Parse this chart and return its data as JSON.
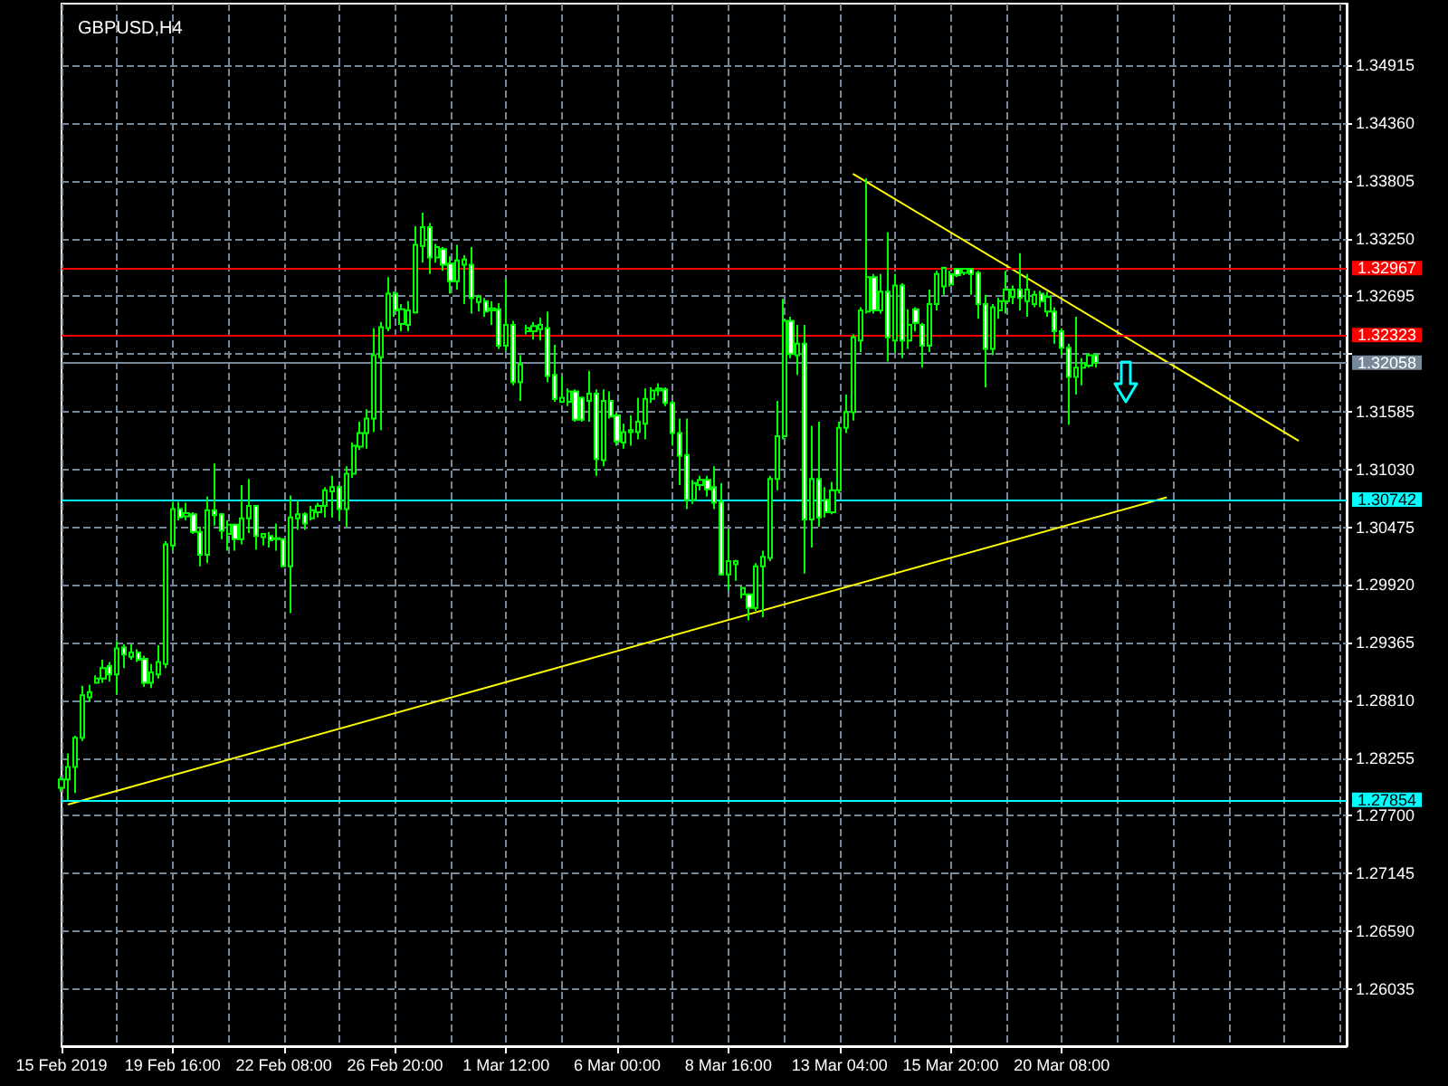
{
  "chart_data": {
    "type": "candlestick",
    "title": "GBPUSD,H4",
    "categories": [
      "15 Feb 2019",
      null,
      null,
      null,
      null,
      null,
      null,
      null,
      null,
      null,
      null,
      null,
      null,
      null,
      null,
      null,
      "19 Feb 16:00",
      null,
      null,
      null,
      null,
      null,
      null,
      null,
      null,
      null,
      null,
      null,
      null,
      null,
      null,
      null,
      "22 Feb 08:00",
      null,
      null,
      null,
      null,
      null,
      null,
      null,
      null,
      null,
      null,
      null,
      null,
      null,
      null,
      null,
      "26 Feb 20:00",
      null,
      null,
      null,
      null,
      null,
      null,
      null,
      null,
      null,
      null,
      null,
      null,
      null,
      null,
      null,
      "1 Mar 12:00",
      null,
      null,
      null,
      null,
      null,
      null,
      null,
      null,
      null,
      null,
      null,
      null,
      null,
      null,
      null,
      "6 Mar 00:00",
      null,
      null,
      null,
      null,
      null,
      null,
      null,
      null,
      null,
      null,
      null,
      null,
      null,
      null,
      null,
      "8 Mar 16:00",
      null,
      null,
      null,
      null,
      null,
      null,
      null,
      null,
      null,
      null,
      null,
      null,
      null,
      null,
      null,
      "13 Mar 04:00",
      null,
      null,
      null,
      null,
      null,
      null,
      null,
      null,
      null,
      null,
      null,
      null,
      null,
      null,
      null,
      "15 Mar 20:00",
      null,
      null,
      null,
      null,
      null,
      null,
      null,
      null,
      null,
      null,
      null,
      null,
      null,
      null,
      null,
      "20 Mar 08:00",
      null,
      null,
      null,
      null,
      null,
      null,
      null,
      null,
      null,
      null,
      null,
      null,
      null,
      null,
      null,
      null,
      null,
      null,
      null,
      null,
      null,
      null,
      null,
      null,
      null,
      null,
      null,
      null,
      null,
      null,
      null,
      null,
      null,
      null,
      null,
      null,
      null,
      null,
      null,
      null,
      null
    ],
    "ohlc": [
      [
        1.2797,
        1.2808,
        1.2793,
        1.2805
      ],
      [
        1.2805,
        1.283,
        1.2785,
        1.2817
      ],
      [
        1.2817,
        1.2847,
        1.2792,
        1.2845
      ],
      [
        1.2845,
        1.2895,
        1.2842,
        1.2886
      ],
      [
        1.2884,
        1.2896,
        1.288,
        1.2889
      ],
      [
        1.2898,
        1.2905,
        1.2897,
        1.2902
      ],
      [
        1.2902,
        1.292,
        1.2898,
        1.2912
      ],
      [
        1.2914,
        1.2918,
        1.2899,
        1.2906
      ],
      [
        1.2906,
        1.2938,
        1.2887,
        1.2931
      ],
      [
        1.2932,
        1.2935,
        1.2912,
        1.2925
      ],
      [
        1.2923,
        1.2935,
        1.292,
        1.2927
      ],
      [
        1.2927,
        1.293,
        1.2918,
        1.292
      ],
      [
        1.2921,
        1.2924,
        1.2894,
        1.2898
      ],
      [
        1.2898,
        1.2916,
        1.2893,
        1.2908
      ],
      [
        1.2906,
        1.2934,
        1.2902,
        1.2918
      ],
      [
        1.2916,
        1.3034,
        1.2912,
        1.3031
      ],
      [
        1.303,
        1.3072,
        1.3025,
        1.3065
      ],
      [
        1.3065,
        1.3072,
        1.3054,
        1.3057
      ],
      [
        1.3058,
        1.3071,
        1.3054,
        1.3061
      ],
      [
        1.306,
        1.3062,
        1.3041,
        1.3043
      ],
      [
        1.3043,
        1.3048,
        1.301,
        1.3021
      ],
      [
        1.3021,
        1.3077,
        1.3013,
        1.3064
      ],
      [
        1.3064,
        1.3109,
        1.3049,
        1.3059
      ],
      [
        1.306,
        1.3061,
        1.3036,
        1.3044
      ],
      [
        1.3041,
        1.3054,
        1.3025,
        1.305
      ],
      [
        1.305,
        1.3051,
        1.3025,
        1.3036
      ],
      [
        1.3036,
        1.3088,
        1.3031,
        1.3056
      ],
      [
        1.3056,
        1.3094,
        1.3042,
        1.3068
      ],
      [
        1.3068,
        1.3069,
        1.3026,
        1.3039
      ],
      [
        1.3038,
        1.3042,
        1.303,
        1.3041
      ],
      [
        1.3039,
        1.3043,
        1.3028,
        1.3035
      ],
      [
        1.3037,
        1.3051,
        1.3025,
        1.3036
      ],
      [
        1.3036,
        1.3037,
        1.3009,
        1.301
      ],
      [
        1.301,
        1.3078,
        1.2965,
        1.3057
      ],
      [
        1.3056,
        1.3073,
        1.3045,
        1.306
      ],
      [
        1.306,
        1.3062,
        1.3045,
        1.3051
      ],
      [
        1.3056,
        1.3068,
        1.3054,
        1.3064
      ],
      [
        1.3062,
        1.3071,
        1.3057,
        1.3068
      ],
      [
        1.3068,
        1.3086,
        1.3057,
        1.3083
      ],
      [
        1.3082,
        1.3097,
        1.3057,
        1.3086
      ],
      [
        1.3086,
        1.3088,
        1.3054,
        1.3065
      ],
      [
        1.3065,
        1.3106,
        1.3048,
        1.3099
      ],
      [
        1.3099,
        1.3129,
        1.3095,
        1.3126
      ],
      [
        1.3125,
        1.3149,
        1.3122,
        1.3138
      ],
      [
        1.3138,
        1.3161,
        1.3123,
        1.3152
      ],
      [
        1.3152,
        1.3239,
        1.3139,
        1.3213
      ],
      [
        1.3211,
        1.3245,
        1.3141,
        1.324
      ],
      [
        1.3239,
        1.3288,
        1.3236,
        1.3272
      ],
      [
        1.3272,
        1.3274,
        1.325,
        1.3256
      ],
      [
        1.3243,
        1.3262,
        1.3236,
        1.3257
      ],
      [
        1.3242,
        1.3265,
        1.3236,
        1.3256
      ],
      [
        1.3254,
        1.3337,
        1.3253,
        1.3319
      ],
      [
        1.3318,
        1.335,
        1.3302,
        1.3336
      ],
      [
        1.3336,
        1.334,
        1.3291,
        1.3307
      ],
      [
        1.3307,
        1.332,
        1.3302,
        1.3317
      ],
      [
        1.3315,
        1.3317,
        1.3294,
        1.33
      ],
      [
        1.3301,
        1.3308,
        1.3272,
        1.3284
      ],
      [
        1.3284,
        1.3319,
        1.3276,
        1.3304
      ],
      [
        1.33,
        1.3309,
        1.3262,
        1.3305
      ],
      [
        1.33,
        1.3317,
        1.3253,
        1.3268
      ],
      [
        1.3264,
        1.3271,
        1.3255,
        1.3269
      ],
      [
        1.3265,
        1.3268,
        1.325,
        1.3255
      ],
      [
        1.3256,
        1.3265,
        1.3242,
        1.3258
      ],
      [
        1.3257,
        1.3263,
        1.3219,
        1.3222
      ],
      [
        1.3222,
        1.3286,
        1.3217,
        1.3242
      ],
      [
        1.3242,
        1.3246,
        1.3184,
        1.3187
      ],
      [
        1.3187,
        1.3213,
        1.3169,
        1.3204
      ],
      [
        1.3236,
        1.3242,
        1.3233,
        1.3239
      ],
      [
        1.3236,
        1.3245,
        1.3228,
        1.3241
      ],
      [
        1.3238,
        1.3249,
        1.3227,
        1.3242
      ],
      [
        1.3239,
        1.3255,
        1.3187,
        1.3193
      ],
      [
        1.3194,
        1.3223,
        1.3168,
        1.3171
      ],
      [
        1.3168,
        1.3193,
        1.3167,
        1.3172
      ],
      [
        1.3168,
        1.3181,
        1.3164,
        1.3178
      ],
      [
        1.3178,
        1.318,
        1.3149,
        1.3151
      ],
      [
        1.3172,
        1.3173,
        1.3149,
        1.3151
      ],
      [
        1.3169,
        1.3198,
        1.3149,
        1.3176
      ],
      [
        1.3176,
        1.318,
        1.3097,
        1.3113
      ],
      [
        1.3112,
        1.318,
        1.3106,
        1.3169
      ],
      [
        1.3169,
        1.3178,
        1.3152,
        1.3154
      ],
      [
        1.3155,
        1.3158,
        1.3126,
        1.313
      ],
      [
        1.3129,
        1.3147,
        1.3123,
        1.3139
      ],
      [
        1.3139,
        1.3155,
        1.3126,
        1.3141
      ],
      [
        1.3139,
        1.3172,
        1.3132,
        1.3149
      ],
      [
        1.3147,
        1.3181,
        1.3132,
        1.3171
      ],
      [
        1.3171,
        1.3182,
        1.3167,
        1.3179
      ],
      [
        1.3179,
        1.3186,
        1.3174,
        1.3181
      ],
      [
        1.318,
        1.3182,
        1.3164,
        1.3167
      ],
      [
        1.3167,
        1.3169,
        1.3126,
        1.3138
      ],
      [
        1.3138,
        1.3152,
        1.3088,
        1.3116
      ],
      [
        1.3117,
        1.3152,
        1.3065,
        1.3074
      ],
      [
        1.3074,
        1.3093,
        1.307,
        1.309
      ],
      [
        1.3088,
        1.3097,
        1.3083,
        1.3093
      ],
      [
        1.3093,
        1.3097,
        1.3077,
        1.3084
      ],
      [
        1.3086,
        1.3106,
        1.3065,
        1.3071
      ],
      [
        1.3072,
        1.309,
        1.3001,
        1.3002
      ],
      [
        1.3002,
        1.3045,
        1.2987,
        1.3015
      ],
      [
        1.3012,
        1.3016,
        1.2996,
        1.3015
      ],
      [
        1.2983,
        1.2991,
        1.2979,
        1.2989
      ],
      [
        1.2983,
        1.2984,
        1.2958,
        1.297
      ],
      [
        1.297,
        1.3013,
        1.2967,
        1.301
      ],
      [
        1.301,
        1.3025,
        1.2961,
        1.3019
      ],
      [
        1.3018,
        1.3097,
        1.3015,
        1.3094
      ],
      [
        1.3094,
        1.3169,
        1.3083,
        1.3135
      ],
      [
        1.3135,
        1.3267,
        1.3132,
        1.3246
      ],
      [
        1.3246,
        1.325,
        1.321,
        1.3214
      ],
      [
        1.3213,
        1.3242,
        1.3194,
        1.3224
      ],
      [
        1.3224,
        1.3242,
        1.3003,
        1.3055
      ],
      [
        1.3055,
        1.3145,
        1.3028,
        1.3094
      ],
      [
        1.3094,
        1.3149,
        1.3048,
        1.3057
      ],
      [
        1.3074,
        1.3086,
        1.3057,
        1.3062
      ],
      [
        1.3062,
        1.3091,
        1.306,
        1.3083
      ],
      [
        1.3083,
        1.3149,
        1.308,
        1.3143
      ],
      [
        1.3143,
        1.3175,
        1.3138,
        1.3158
      ],
      [
        1.3158,
        1.3233,
        1.315,
        1.323
      ],
      [
        1.3227,
        1.3259,
        1.3216,
        1.3256
      ],
      [
        1.3255,
        1.3383,
        1.3253,
        1.3288
      ],
      [
        1.3288,
        1.3291,
        1.3253,
        1.3256
      ],
      [
        1.3256,
        1.3291,
        1.3253,
        1.3274
      ],
      [
        1.3274,
        1.3331,
        1.3207,
        1.323
      ],
      [
        1.3227,
        1.3291,
        1.3216,
        1.328
      ],
      [
        1.328,
        1.3282,
        1.321,
        1.3227
      ],
      [
        1.3227,
        1.3257,
        1.3219,
        1.3242
      ],
      [
        1.3257,
        1.3259,
        1.3236,
        1.3244
      ],
      [
        1.3242,
        1.3244,
        1.3201,
        1.3222
      ],
      [
        1.3222,
        1.3276,
        1.3216,
        1.3262
      ],
      [
        1.3262,
        1.3294,
        1.3256,
        1.3291
      ],
      [
        1.3279,
        1.3298,
        1.3271,
        1.3297
      ],
      [
        1.3291,
        1.3294,
        1.3279,
        1.3281
      ],
      [
        1.3296,
        1.3297,
        1.3288,
        1.329
      ],
      [
        1.3292,
        1.3297,
        1.329,
        1.3296
      ],
      [
        1.3296,
        1.3297,
        1.3271,
        1.3291
      ],
      [
        1.3292,
        1.3294,
        1.3248,
        1.3262
      ],
      [
        1.3262,
        1.3271,
        1.3182,
        1.3219
      ],
      [
        1.3219,
        1.3262,
        1.3213,
        1.3259
      ],
      [
        1.3256,
        1.3268,
        1.3248,
        1.3265
      ],
      [
        1.3265,
        1.3294,
        1.3253,
        1.3276
      ],
      [
        1.3269,
        1.328,
        1.3262,
        1.3276
      ],
      [
        1.3276,
        1.3311,
        1.3256,
        1.3268
      ],
      [
        1.3265,
        1.3291,
        1.325,
        1.3276
      ],
      [
        1.3262,
        1.3275,
        1.3259,
        1.3271
      ],
      [
        1.3272,
        1.3275,
        1.3259,
        1.3265
      ],
      [
        1.3255,
        1.3274,
        1.325,
        1.3269
      ],
      [
        1.3255,
        1.3259,
        1.3224,
        1.3236
      ],
      [
        1.3236,
        1.3239,
        1.3213,
        1.322
      ],
      [
        1.322,
        1.3224,
        1.3146,
        1.3192
      ],
      [
        1.3192,
        1.325,
        1.3175,
        1.3201
      ],
      [
        1.3201,
        1.321,
        1.3184,
        1.3205
      ],
      [
        1.3203,
        1.3215,
        1.3201,
        1.3213
      ],
      [
        1.3213,
        1.3215,
        1.3201,
        1.32058
      ],
      null,
      null,
      null,
      null,
      null,
      null,
      null,
      null,
      null,
      null,
      null,
      null,
      null,
      null,
      null,
      null,
      null,
      null,
      null,
      null,
      null,
      null,
      null,
      null,
      null,
      null,
      null,
      null,
      null,
      null,
      null,
      null,
      null,
      null,
      null,
      null
    ],
    "color": "#00ff00",
    "ylim": [
      1.25485,
      1.3551
    ],
    "yticks": [
      1.26035,
      {
        "value": 1.2659,
        "label": "1.26590"
      },
      1.27145,
      {
        "value": 1.277,
        "label": "1.27700"
      },
      1.28255,
      {
        "value": 1.2881,
        "label": "1.28810"
      },
      1.29365,
      {
        "value": 1.2992,
        "label": "1.29920"
      },
      1.30475,
      {
        "value": 1.3103,
        "label": "1.31030"
      },
      1.31585,
      {
        "value": 1.3214,
        "label": null
      },
      1.32695,
      {
        "value": 1.3325,
        "label": "1.33250"
      },
      1.33805,
      {
        "value": 1.3436,
        "label": "1.34360"
      },
      1.34915
    ],
    "grid": true,
    "ref_lines": [
      {
        "axis": "y",
        "value": 1.32967,
        "label": "1.32967",
        "color": "#ff0000"
      },
      {
        "axis": "y",
        "value": 1.32323,
        "label": "1.32323",
        "color": "#ff0000"
      },
      {
        "axis": "y",
        "value": 1.32058,
        "label": "1.32058",
        "color": "#778899"
      },
      {
        "axis": "y",
        "value": 1.30742,
        "label": "1.30742",
        "color": "#00ffff"
      },
      {
        "axis": "y",
        "value": 1.27854,
        "label": "1.27854",
        "color": "#00ffff"
      }
    ],
    "series": [
      {
        "type": "line",
        "color": "#ffff00",
        "values": [
          null,
          1.2781,
          null,
          null,
          null,
          null,
          null,
          null,
          null,
          null,
          null,
          null,
          null,
          null,
          null,
          null,
          null,
          null,
          null,
          null,
          null,
          null,
          null,
          null,
          null,
          null,
          null,
          null,
          null,
          null,
          null,
          null,
          null,
          null,
          null,
          null,
          null,
          null,
          null,
          null,
          null,
          null,
          null,
          null,
          null,
          null,
          null,
          null,
          null,
          null,
          null,
          null,
          null,
          null,
          null,
          null,
          null,
          null,
          null,
          null,
          null,
          null,
          null,
          null,
          null,
          null,
          null,
          null,
          null,
          null,
          null,
          null,
          null,
          null,
          null,
          null,
          null,
          null,
          null,
          null,
          null,
          null,
          null,
          null,
          null,
          null,
          null,
          null,
          null,
          null,
          null,
          null,
          null,
          null,
          null,
          null,
          null,
          null,
          null,
          null,
          null,
          null,
          null,
          null,
          null,
          null,
          null,
          null,
          null,
          null,
          null,
          null,
          null,
          null,
          null,
          null,
          null,
          null,
          null,
          null,
          null,
          null,
          null,
          null,
          null,
          null,
          null,
          null,
          null,
          null,
          null,
          null,
          null,
          null,
          null,
          null,
          null,
          null,
          null,
          null,
          null,
          null,
          null,
          null,
          null,
          null,
          null,
          null,
          null,
          null,
          null,
          null,
          null,
          null,
          null,
          null,
          null,
          null,
          null,
          1.3076,
          null,
          null,
          null,
          null,
          null,
          null,
          null,
          null,
          null,
          null,
          null,
          null,
          null,
          null,
          null,
          null,
          null,
          null,
          null,
          null,
          null,
          null,
          null,
          null,
          null,
          null
        ]
      },
      {
        "type": "line",
        "color": "#ffff00",
        "values": [
          null,
          null,
          null,
          null,
          null,
          null,
          null,
          null,
          null,
          null,
          null,
          null,
          null,
          null,
          null,
          null,
          null,
          null,
          null,
          null,
          null,
          null,
          null,
          null,
          null,
          null,
          null,
          null,
          null,
          null,
          null,
          null,
          null,
          null,
          null,
          null,
          null,
          null,
          null,
          null,
          null,
          null,
          null,
          null,
          null,
          null,
          null,
          null,
          null,
          null,
          null,
          null,
          null,
          null,
          null,
          null,
          null,
          null,
          null,
          null,
          null,
          null,
          null,
          null,
          null,
          null,
          null,
          null,
          null,
          null,
          null,
          null,
          null,
          null,
          null,
          null,
          null,
          null,
          null,
          null,
          null,
          null,
          null,
          null,
          null,
          null,
          null,
          null,
          null,
          null,
          null,
          null,
          null,
          null,
          null,
          null,
          null,
          null,
          null,
          null,
          null,
          null,
          null,
          null,
          null,
          null,
          null,
          null,
          null,
          null,
          null,
          null,
          null,
          null,
          1.3387,
          null,
          null,
          null,
          null,
          null,
          null,
          null,
          null,
          null,
          null,
          null,
          null,
          null,
          null,
          null,
          null,
          null,
          null,
          null,
          null,
          null,
          null,
          null,
          null,
          null,
          null,
          null,
          null,
          null,
          null,
          null,
          null,
          null,
          null,
          null,
          null,
          null,
          null,
          null,
          null,
          null,
          null,
          null,
          null,
          null,
          null,
          null,
          null,
          null,
          null,
          null,
          null,
          null,
          null,
          null,
          null,
          null,
          null,
          null,
          null,
          null,
          null,
          null,
          1.3131,
          null,
          null,
          null,
          null,
          null,
          null,
          null
        ]
      }
    ]
  }
}
